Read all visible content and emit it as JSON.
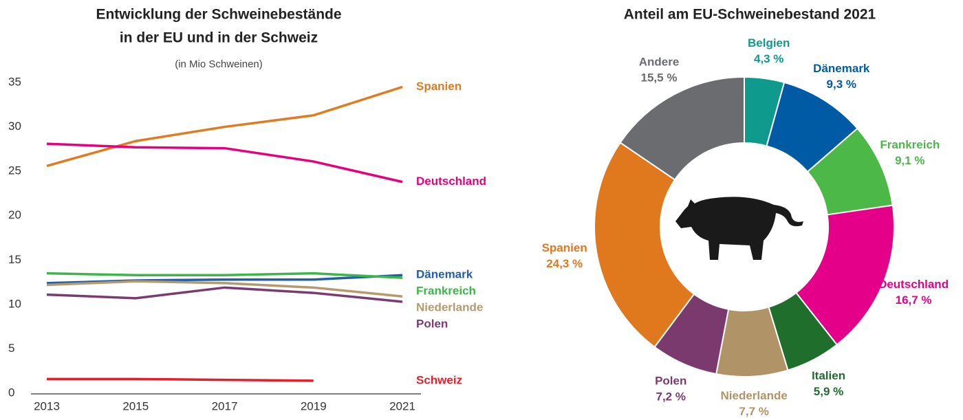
{
  "chart_data": [
    {
      "type": "line",
      "title": [
        "Entwicklung der Schweinebestände",
        "in der EU und in der Schweiz"
      ],
      "subtitle": "(in Mio Schweinen)",
      "x": [
        2013,
        2015,
        2017,
        2019,
        2021
      ],
      "xlim": [
        2013,
        2021
      ],
      "xticks": [
        2013,
        2015,
        2017,
        2019,
        2021
      ],
      "ylim": [
        0,
        35
      ],
      "yticks": [
        0,
        5,
        10,
        15,
        20,
        25,
        30,
        35
      ],
      "grid": false,
      "series": [
        {
          "name": "Spanien",
          "color": "#e07b20",
          "values": [
            25.6,
            28.4,
            30.0,
            31.3,
            34.5
          ]
        },
        {
          "name": "Deutschland",
          "color": "#e6007e",
          "values": [
            28.1,
            27.7,
            27.6,
            26.1,
            23.8
          ]
        },
        {
          "name": "Dänemark",
          "color": "#1f5fa8",
          "values": [
            12.4,
            12.7,
            12.8,
            12.8,
            13.3
          ]
        },
        {
          "name": "Frankreich",
          "color": "#3db54a",
          "values": [
            13.5,
            13.3,
            13.3,
            13.5,
            13.0
          ]
        },
        {
          "name": "Niederlande",
          "color": "#b59a6e",
          "values": [
            12.2,
            12.6,
            12.4,
            11.9,
            10.9
          ]
        },
        {
          "name": "Polen",
          "color": "#7a3b72",
          "values": [
            11.1,
            10.7,
            11.9,
            11.3,
            10.3
          ]
        },
        {
          "name": "Schweiz",
          "color": "#e3202a",
          "values": [
            1.6,
            1.6,
            1.5,
            1.4,
            null
          ]
        }
      ]
    },
    {
      "type": "donut",
      "title": "Anteil am EU-Schweinebestand 2021",
      "categories": [
        "Belgien",
        "Dänemark",
        "Frankreich",
        "Deutschland",
        "Italien",
        "Niederlande",
        "Polen",
        "Spanien",
        "Andere"
      ],
      "values": [
        4.3,
        9.3,
        9.1,
        16.7,
        5.9,
        7.7,
        7.2,
        24.3,
        15.5
      ],
      "value_labels": [
        "4,3 %",
        "9,3 %",
        "9,1 %",
        "16,7 %",
        "5,9 %",
        "7,7 %",
        "7,2 %",
        "24,3 %",
        "15,5 %"
      ],
      "colors": [
        "#0f9a8e",
        "#005ba4",
        "#4cb848",
        "#e5008a",
        "#1f6e2c",
        "#b09467",
        "#7b3a6e",
        "#e0781e",
        "#6b6c70"
      ]
    }
  ]
}
